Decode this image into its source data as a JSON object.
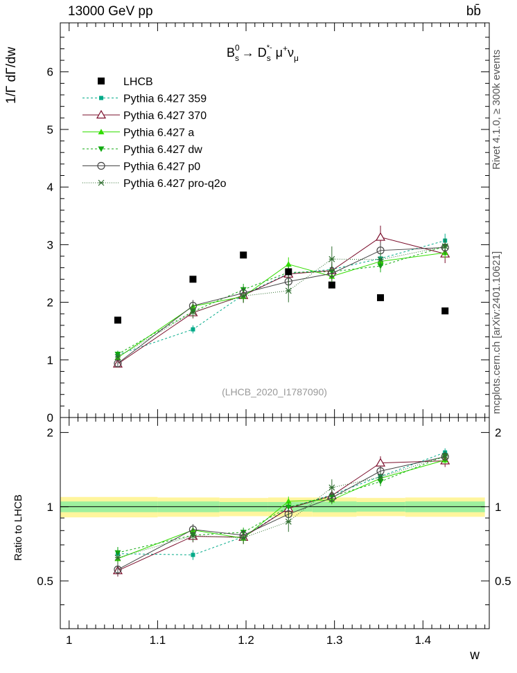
{
  "header": {
    "energy_label": "13000 GeV pp",
    "process_label": "bb̄"
  },
  "side": {
    "rivet_label": "Rivet 4.1.0, ≥ 300k events",
    "mcplots_label": "mcplots.cern.ch [arXiv:2401.10621]"
  },
  "chart_data": {
    "type": "line",
    "title": "B_s^0 → D_s^{*-} μ^+ ν_μ",
    "analysis_label": "(LHCB_2020_I1787090)",
    "xlabel": "w",
    "ylabel": "1/Γ dΓ/dw",
    "ratio_ylabel": "Ratio to LHCB",
    "xlim": [
      0.99,
      1.475
    ],
    "ylim": [
      0,
      6.85
    ],
    "ratio_ylim": [
      0.32,
      2.3
    ],
    "x_ticks": [
      1,
      1.1,
      1.2,
      1.3,
      1.4
    ],
    "x_tick_labels": [
      "1",
      "1.1",
      "1.2",
      "1.3",
      "1.4"
    ],
    "y_ticks": [
      0,
      1,
      2,
      3,
      4,
      5,
      6
    ],
    "y_tick_labels": [
      "0",
      "1",
      "2",
      "3",
      "4",
      "5",
      "6"
    ],
    "ratio_ticks": [
      0.5,
      1,
      2
    ],
    "ratio_tick_labels": [
      "0.5",
      "1",
      "2"
    ],
    "bins": [
      {
        "x": 1.055,
        "lo": 0.99,
        "hi": 1.1
      },
      {
        "x": 1.14,
        "lo": 1.1,
        "hi": 1.17
      },
      {
        "x": 1.197,
        "lo": 1.17,
        "hi": 1.225
      },
      {
        "x": 1.248,
        "lo": 1.225,
        "hi": 1.275
      },
      {
        "x": 1.297,
        "lo": 1.275,
        "hi": 1.325
      },
      {
        "x": 1.352,
        "lo": 1.325,
        "hi": 1.38
      },
      {
        "x": 1.425,
        "lo": 1.38,
        "hi": 1.47
      }
    ],
    "data": {
      "name": "LHCB",
      "values": [
        1.69,
        2.4,
        2.82,
        2.53,
        2.3,
        2.08,
        1.85
      ],
      "band_inner": [
        0.05,
        0.05,
        0.045,
        0.045,
        0.05,
        0.045,
        0.05
      ],
      "band_outer": [
        0.095,
        0.09,
        0.085,
        0.09,
        0.09,
        0.085,
        0.09
      ]
    },
    "series": [
      {
        "name": "Pythia 6.427 359",
        "color": "#00aa88",
        "dash": "3,3",
        "marker": "square-small",
        "values": [
          1.09,
          1.53,
          2.13,
          2.5,
          2.57,
          2.76,
          3.07
        ],
        "errors": [
          0.06,
          0.07,
          0.08,
          0.1,
          0.1,
          0.11,
          0.12
        ]
      },
      {
        "name": "Pythia 6.427 370",
        "color": "#7a0c2a",
        "dash": "",
        "marker": "triangle-open",
        "values": [
          0.93,
          1.82,
          2.12,
          2.49,
          2.55,
          3.13,
          2.84
        ],
        "errors": [
          0.05,
          0.1,
          0.13,
          0.15,
          0.15,
          0.2,
          0.16
        ]
      },
      {
        "name": "Pythia 6.427 a",
        "color": "#33dd00",
        "dash": "",
        "marker": "triangle",
        "values": [
          1.04,
          1.93,
          2.1,
          2.66,
          2.45,
          2.71,
          2.86
        ],
        "errors": [
          0.05,
          0.09,
          0.1,
          0.12,
          0.1,
          0.11,
          0.1
        ]
      },
      {
        "name": "Pythia 6.427 dw",
        "color": "#11aa11",
        "dash": "3,3",
        "marker": "triangle-down",
        "values": [
          1.1,
          1.84,
          2.22,
          2.52,
          2.53,
          2.63,
          2.97
        ],
        "errors": [
          0.06,
          0.09,
          0.1,
          0.12,
          0.12,
          0.11,
          0.12
        ]
      },
      {
        "name": "Pythia 6.427 p0",
        "color": "#444444",
        "dash": "",
        "marker": "circle-open",
        "values": [
          0.94,
          1.94,
          2.16,
          2.36,
          2.5,
          2.9,
          2.95
        ],
        "errors": [
          0.05,
          0.1,
          0.11,
          0.12,
          0.13,
          0.14,
          0.13
        ]
      },
      {
        "name": "Pythia 6.427 pro-q2o",
        "color": "#2f6e2f",
        "dash": "1,2",
        "marker": "star",
        "values": [
          1.05,
          1.83,
          2.11,
          2.2,
          2.75,
          2.74,
          2.97
        ],
        "errors": [
          0.06,
          0.1,
          0.12,
          0.2,
          0.22,
          0.13,
          0.14
        ]
      }
    ]
  }
}
